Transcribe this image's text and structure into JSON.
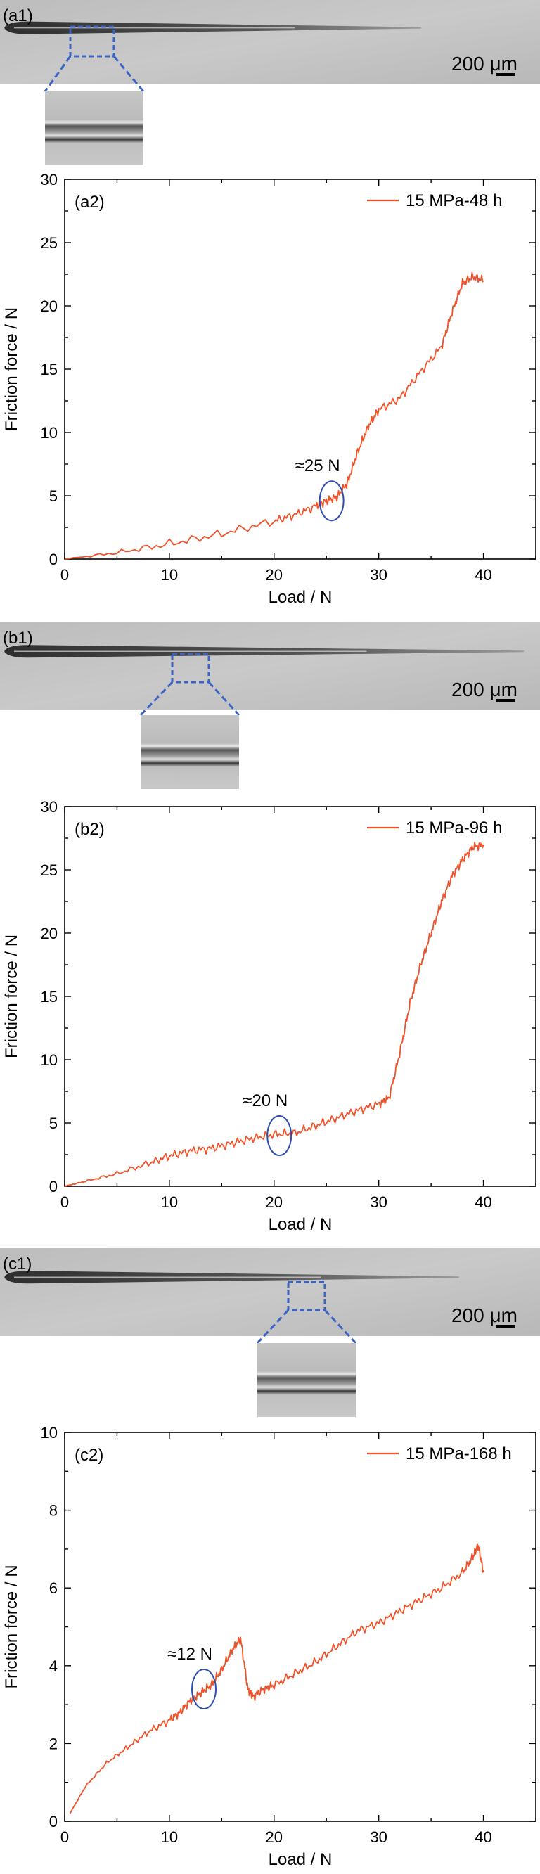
{
  "micrographs": [
    {
      "label": "(a1)",
      "scale_text": "200 μm",
      "groove_end": 0.78
    },
    {
      "label": "(b1)",
      "scale_text": "200 μm",
      "groove_end": 0.97
    },
    {
      "label": "(c1)",
      "scale_text": "200 μm",
      "groove_end": 0.85
    }
  ],
  "chart_data": [
    {
      "type": "line",
      "panel_label": "(a2)",
      "xlabel": "Load / N",
      "ylabel": "Friction force / N",
      "xlim": [
        0,
        45
      ],
      "ylim": [
        0,
        30
      ],
      "xticks": [
        0,
        10,
        20,
        30,
        40
      ],
      "yticks": [
        0,
        5,
        10,
        15,
        20,
        25,
        30
      ],
      "legend_position": "top-right",
      "annotation": {
        "text": "≈25 N",
        "x": 25.5,
        "y": 4.6
      },
      "series": [
        {
          "name": "15 MPa-48 h",
          "color": "#f0522a",
          "x": [
            0,
            5,
            10,
            15,
            20,
            22,
            24,
            25,
            26,
            27,
            28,
            29,
            30,
            32,
            34,
            36,
            37,
            38,
            39,
            40
          ],
          "y": [
            0,
            0.5,
            1.2,
            2.0,
            3.0,
            3.5,
            4.2,
            4.6,
            4.9,
            6.0,
            8.5,
            10.5,
            11.8,
            12.7,
            14.8,
            16.8,
            19.5,
            21.8,
            22.3,
            22.0
          ]
        }
      ]
    },
    {
      "type": "line",
      "panel_label": "(b2)",
      "xlabel": "Load / N",
      "ylabel": "Friction force / N",
      "xlim": [
        0,
        45
      ],
      "ylim": [
        0,
        30
      ],
      "xticks": [
        0,
        10,
        20,
        30,
        40
      ],
      "yticks": [
        0,
        5,
        10,
        15,
        20,
        25,
        30
      ],
      "legend_position": "top-right",
      "annotation": {
        "text": "≈20 N",
        "x": 20.5,
        "y": 4.0
      },
      "series": [
        {
          "name": "15 MPa-96 h",
          "color": "#f0522a",
          "x": [
            0,
            2,
            5,
            8,
            10,
            12,
            14,
            16,
            18,
            20,
            22,
            24,
            26,
            28,
            30,
            31,
            32,
            33,
            34,
            35,
            36,
            37,
            38,
            39,
            40
          ],
          "y": [
            0,
            0.4,
            1.0,
            1.8,
            2.4,
            2.8,
            3.0,
            3.4,
            3.8,
            4.1,
            4.2,
            4.8,
            5.4,
            6.0,
            6.5,
            7.0,
            10.5,
            14.5,
            17.5,
            20.0,
            22.5,
            24.5,
            25.8,
            26.8,
            27.0
          ]
        }
      ]
    },
    {
      "type": "line",
      "panel_label": "(c2)",
      "xlabel": "Load / N",
      "ylabel": "Friction force / N",
      "xlim": [
        0,
        45
      ],
      "ylim": [
        0,
        10
      ],
      "xticks": [
        0,
        10,
        20,
        30,
        40
      ],
      "yticks": [
        0,
        2,
        4,
        6,
        8,
        10
      ],
      "legend_position": "top-right",
      "annotation": {
        "text": "≈12 N",
        "x": 13.3,
        "y": 3.4
      },
      "series": [
        {
          "name": "15 MPa-168 h",
          "color": "#f0522a",
          "x": [
            0.5,
            2,
            4,
            6,
            8,
            10,
            11,
            12,
            13,
            14,
            15,
            16,
            16.8,
            17.5,
            18,
            19,
            20,
            22,
            24,
            26,
            28,
            30,
            32,
            34,
            36,
            38,
            39,
            39.5,
            40
          ],
          "y": [
            0.2,
            0.9,
            1.5,
            1.9,
            2.3,
            2.6,
            2.8,
            3.1,
            3.3,
            3.5,
            3.9,
            4.4,
            4.7,
            3.4,
            3.2,
            3.4,
            3.5,
            3.8,
            4.1,
            4.5,
            4.9,
            5.1,
            5.4,
            5.7,
            6.0,
            6.4,
            6.8,
            7.1,
            6.4
          ]
        }
      ]
    }
  ]
}
